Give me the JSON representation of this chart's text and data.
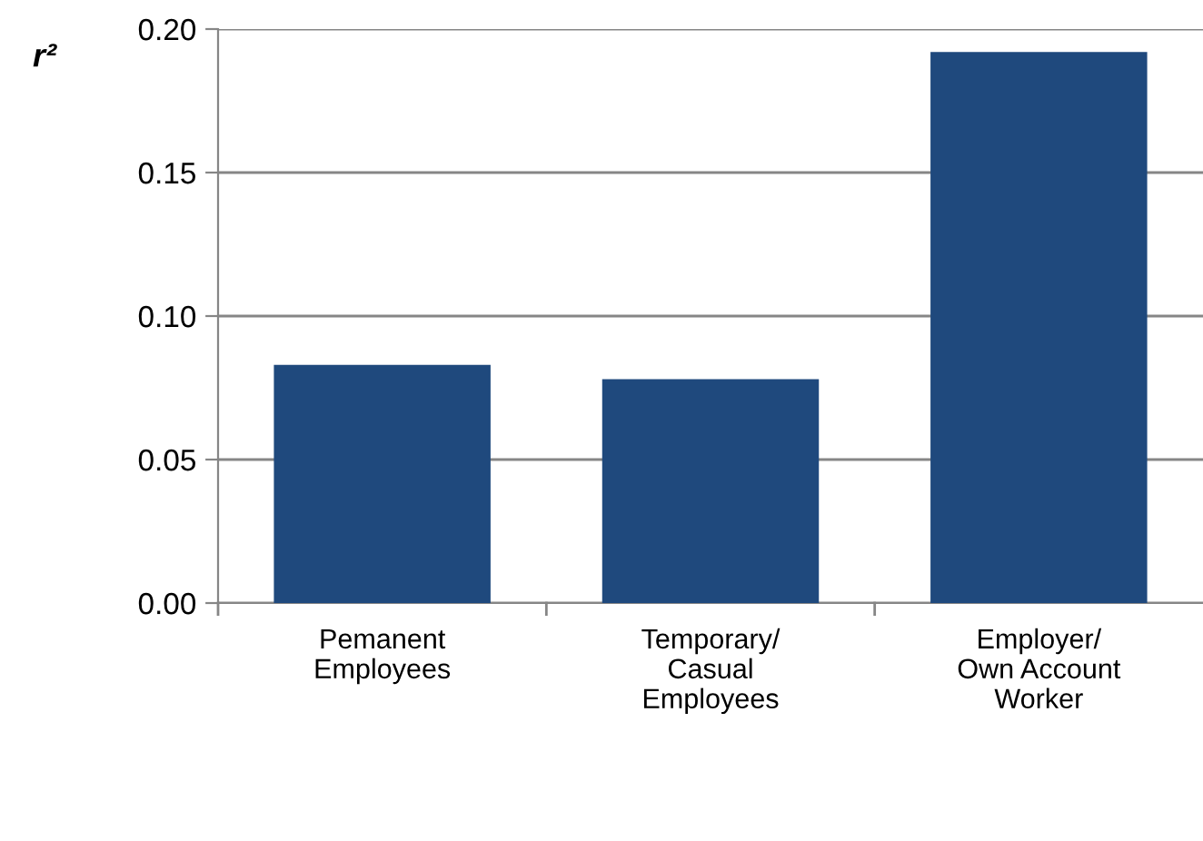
{
  "chart_data": {
    "type": "bar",
    "ylabel": "r²",
    "categories": [
      "Pemanent\nEmployees",
      "Temporary/\nCasual\nEmployees",
      "Employer/\nOwn Account\nWorker"
    ],
    "values": [
      0.083,
      0.078,
      0.192
    ],
    "color": "#1f497d",
    "ylim": [
      0,
      0.2
    ],
    "yticks": [
      {
        "value": 0,
        "label": "0.00"
      },
      {
        "value": 0.05,
        "label": "0.05"
      },
      {
        "value": 0.1,
        "label": "0.10"
      },
      {
        "value": 0.15,
        "label": "0.15"
      },
      {
        "value": 0.2,
        "label": "0.20"
      }
    ],
    "grid": "y"
  }
}
